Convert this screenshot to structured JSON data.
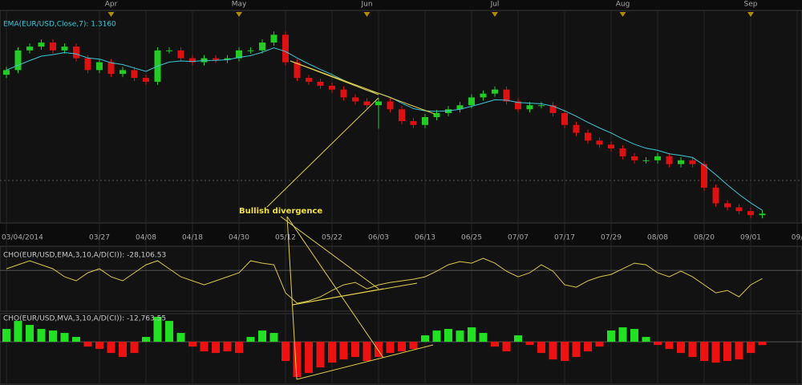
{
  "chart_data": [
    {
      "type": "candlestick",
      "title": "EMA(EUR/USD,Close,7): 1.3160",
      "annotation": "Bullish divergence",
      "categories": [
        "03/04/2014",
        null,
        null,
        null,
        null,
        null,
        null,
        null,
        "03/27",
        null,
        null,
        null,
        "04/08",
        null,
        null,
        null,
        "04/18",
        null,
        null,
        null,
        "04/30",
        null,
        null,
        null,
        "05/12",
        null,
        null,
        null,
        "05/22",
        null,
        null,
        null,
        "06/03",
        null,
        null,
        null,
        "06/13",
        null,
        null,
        null,
        "06/25",
        null,
        null,
        null,
        "07/07",
        null,
        null,
        null,
        "07/17",
        null,
        null,
        null,
        "07/29",
        null,
        null,
        null,
        "08/08",
        null,
        null,
        null,
        "08/20",
        null,
        null,
        null,
        "09/01",
        null,
        null,
        null,
        "09/"
      ],
      "months": [
        null,
        null,
        null,
        null,
        null,
        null,
        null,
        null,
        null,
        "Apr",
        null,
        null,
        null,
        null,
        null,
        null,
        null,
        null,
        null,
        null,
        "May",
        null,
        null,
        null,
        null,
        null,
        null,
        null,
        null,
        null,
        null,
        "Jun",
        null,
        null,
        null,
        null,
        null,
        null,
        null,
        null,
        null,
        null,
        "Jul",
        null,
        null,
        null,
        null,
        null,
        null,
        null,
        null,
        null,
        null,
        "Aug",
        null,
        null,
        null,
        null,
        null,
        null,
        null,
        null,
        null,
        null,
        "Sep",
        null,
        null,
        null,
        null
      ],
      "open": [
        1.38,
        1.3822,
        1.3915,
        1.3933,
        1.3952,
        1.3915,
        1.3933,
        1.3878,
        1.3822,
        1.3859,
        1.3804,
        1.3822,
        1.3785,
        1.3767,
        1.3915,
        1.3915,
        1.3878,
        1.3859,
        1.3878,
        1.387,
        1.3878,
        1.3915,
        1.3915,
        1.3952,
        1.3989,
        1.3859,
        1.3785,
        1.3767,
        1.3748,
        1.373,
        1.3693,
        1.3674,
        1.3656,
        1.3674,
        1.3637,
        1.3581,
        1.3563,
        1.36,
        1.3619,
        1.3637,
        1.3656,
        1.3693,
        1.3711,
        1.373,
        1.3674,
        1.3637,
        1.3656,
        1.3656,
        1.3619,
        1.3563,
        1.3526,
        1.3489,
        1.347,
        1.3452,
        1.3415,
        1.3396,
        1.3396,
        1.3415,
        1.3378,
        1.3396,
        1.3378,
        1.3267,
        1.3193,
        1.3174,
        1.3156,
        1.3137,
        null,
        null,
        null
      ],
      "high": [
        1.3837,
        1.393,
        1.3948,
        1.3967,
        1.3967,
        1.3948,
        1.3948,
        1.3893,
        1.3874,
        1.3874,
        1.3837,
        1.3837,
        1.38,
        1.393,
        1.393,
        1.393,
        1.3893,
        1.3893,
        1.3893,
        1.3893,
        1.393,
        1.393,
        1.3967,
        1.4004,
        1.4004,
        1.3874,
        1.38,
        1.3782,
        1.3763,
        1.3745,
        1.3708,
        1.3689,
        1.3689,
        1.3689,
        1.3652,
        1.3596,
        1.3615,
        1.3634,
        1.3652,
        1.3671,
        1.3708,
        1.3726,
        1.3745,
        1.3745,
        1.3689,
        1.3671,
        1.3671,
        1.3671,
        1.3634,
        1.3578,
        1.3541,
        1.3504,
        1.3485,
        1.3467,
        1.343,
        1.3411,
        1.343,
        1.343,
        1.3411,
        1.3411,
        1.3393,
        1.3282,
        1.3208,
        1.3189,
        1.3171,
        1.3159,
        null,
        null,
        null
      ],
      "low": [
        1.3785,
        1.3807,
        1.39,
        1.3918,
        1.39,
        1.39,
        1.3863,
        1.3807,
        1.3807,
        1.3789,
        1.3789,
        1.377,
        1.3752,
        1.3752,
        1.39,
        1.3863,
        1.3844,
        1.3844,
        1.3855,
        1.3855,
        1.3863,
        1.39,
        1.39,
        1.3937,
        1.3844,
        1.377,
        1.3752,
        1.3733,
        1.3715,
        1.3678,
        1.3659,
        1.3641,
        1.3545,
        1.3622,
        1.3566,
        1.3548,
        1.3548,
        1.3585,
        1.3604,
        1.3622,
        1.3641,
        1.3678,
        1.3696,
        1.3659,
        1.3622,
        1.3622,
        1.3641,
        1.3604,
        1.3548,
        1.3511,
        1.3474,
        1.3455,
        1.3437,
        1.34,
        1.3381,
        1.3381,
        1.3381,
        1.3363,
        1.3363,
        1.3363,
        1.3252,
        1.3178,
        1.3159,
        1.3141,
        1.3122,
        1.3122,
        null,
        null,
        null
      ],
      "close": [
        1.3822,
        1.3915,
        1.3933,
        1.3952,
        1.3915,
        1.3933,
        1.3878,
        1.3822,
        1.3859,
        1.3804,
        1.3822,
        1.3785,
        1.3767,
        1.3915,
        1.3915,
        1.3878,
        1.3859,
        1.3878,
        1.387,
        1.3878,
        1.3915,
        1.3915,
        1.3952,
        1.3989,
        1.3859,
        1.3785,
        1.3767,
        1.3748,
        1.373,
        1.3693,
        1.3674,
        1.3656,
        1.3674,
        1.3637,
        1.3581,
        1.3563,
        1.36,
        1.3619,
        1.3637,
        1.3656,
        1.3693,
        1.3711,
        1.373,
        1.3674,
        1.3637,
        1.3656,
        1.3656,
        1.3619,
        1.3563,
        1.3526,
        1.3489,
        1.347,
        1.3452,
        1.3415,
        1.3396,
        1.3396,
        1.3415,
        1.3378,
        1.3396,
        1.3378,
        1.3267,
        1.3193,
        1.3174,
        1.3156,
        1.3137,
        1.3144,
        null,
        null,
        null
      ],
      "series": [
        {
          "color": "#3cc8d8",
          "values": [
            1.3822,
            1.3845,
            1.3867,
            1.3888,
            1.3895,
            1.3905,
            1.3898,
            1.3879,
            1.3874,
            1.3857,
            1.3848,
            1.3832,
            1.3816,
            1.3841,
            1.386,
            1.3865,
            1.3863,
            1.3867,
            1.3868,
            1.3871,
            1.3882,
            1.389,
            1.3906,
            1.3927,
            1.391,
            1.3879,
            1.3851,
            1.3825,
            1.3801,
            1.3774,
            1.3749,
            1.3726,
            1.3713,
            1.3694,
            1.3666,
            1.364,
            1.363,
            1.3627,
            1.363,
            1.3637,
            1.3651,
            1.3666,
            1.3682,
            1.368,
            1.3669,
            1.3666,
            1.3663,
            1.3652,
            1.363,
            1.3604,
            1.3575,
            1.3549,
            1.3525,
            1.3497,
            1.3472,
            1.3453,
            1.3443,
            1.3427,
            1.3419,
            1.3409,
            1.3373,
            1.3328,
            1.328,
            1.3235,
            1.3195,
            1.316,
            null,
            null,
            null
          ]
        }
      ],
      "up_color": "#22cc22",
      "down_color": "#dd1111",
      "ylim": [
        1.31,
        1.41
      ]
    },
    {
      "type": "line",
      "title": "CHO(EUR/USD,EMA,3,10,A/D(CI)): -28,106.53",
      "color": "#d8c848",
      "ylim": [
        -140000,
        80000
      ],
      "values": [
        5500,
        19250,
        33000,
        19250,
        5500,
        -22000,
        -35750,
        -8250,
        5500,
        -22000,
        -35750,
        -8250,
        19250,
        33000,
        5500,
        -22000,
        -35750,
        -49500,
        -35750,
        -22000,
        -8250,
        33000,
        24750,
        19250,
        -77000,
        -112750,
        -104500,
        -90750,
        -68750,
        -49500,
        -41250,
        -63250,
        -49500,
        -41250,
        -35750,
        -30250,
        -22000,
        -2750,
        19250,
        30250,
        24750,
        41250,
        24750,
        -2750,
        -22000,
        -8250,
        19250,
        -2750,
        -49500,
        -57750,
        -35750,
        -22000,
        -13750,
        5500,
        24750,
        19250,
        -8250,
        -22000,
        -2750,
        -22000,
        -49500,
        -77000,
        -68750,
        -90750,
        -49500,
        -28106.53,
        null,
        null,
        null
      ]
    },
    {
      "type": "bar",
      "title": "CHO(EUR/USD,MVA,3,10,A/D(CI)): -12,763.55",
      "up_color": "#22e022",
      "down_color": "#ee1111",
      "ylim": [
        -160000,
        105000
      ],
      "values": [
        49300,
        80100,
        64700,
        49300,
        43100,
        33900,
        18500,
        -18500,
        -27700,
        -43100,
        -58500,
        -43100,
        18500,
        95500,
        80100,
        33900,
        -18500,
        -37000,
        -43100,
        -37000,
        -43100,
        18500,
        43100,
        33900,
        -73900,
        -135600,
        -120200,
        -98600,
        -80100,
        -67800,
        -58500,
        -73900,
        -58500,
        -43100,
        -37000,
        -27700,
        24600,
        43100,
        49300,
        43100,
        55500,
        33900,
        -18500,
        -37000,
        24600,
        -12300,
        -43100,
        -67800,
        -73900,
        -58500,
        -37000,
        -18500,
        43100,
        55500,
        49300,
        18500,
        -12300,
        -27700,
        -43100,
        -58500,
        -73900,
        -80100,
        -73900,
        -67800,
        -43100,
        -12763.55,
        null,
        null,
        null
      ]
    }
  ]
}
